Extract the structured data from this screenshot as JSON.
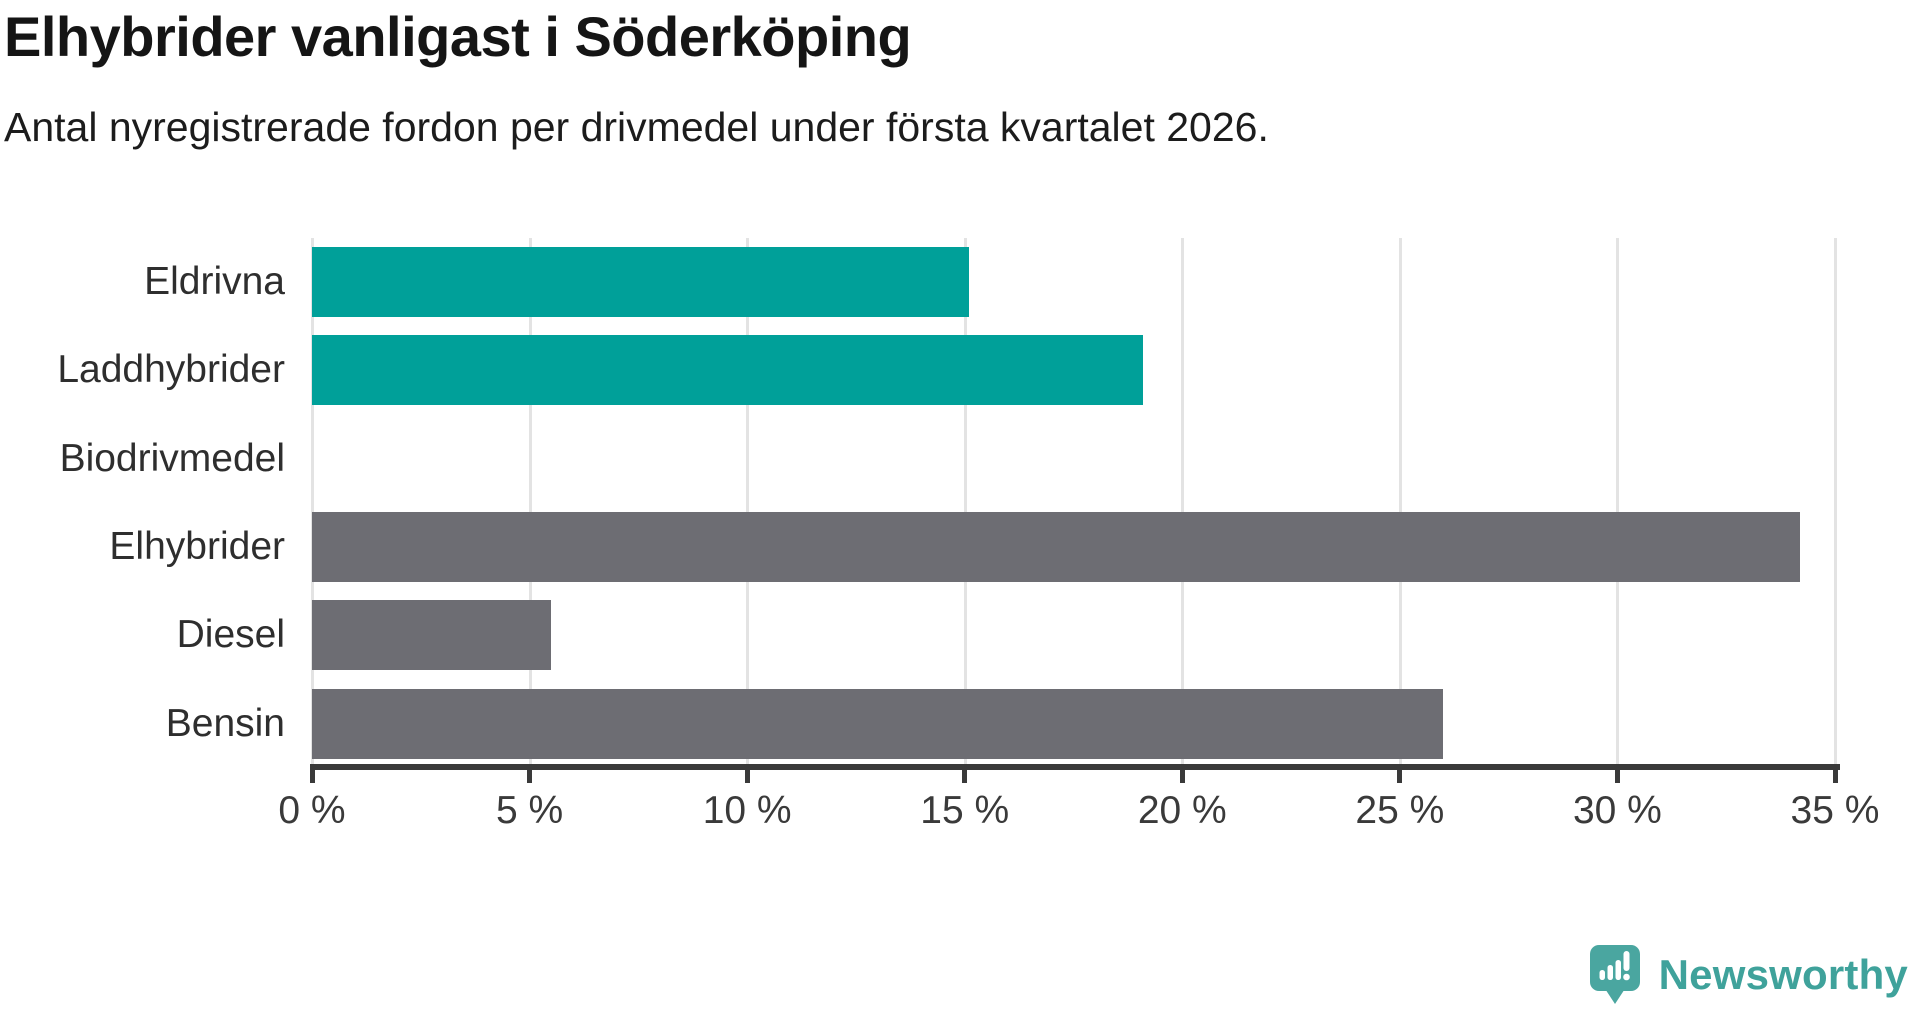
{
  "header": {
    "title": "Elhybrider vanligast i Söderköping",
    "subtitle": "Antal nyregistrerade fordon per drivmedel under första kvartalet 2026."
  },
  "chart_data": {
    "type": "bar",
    "orientation": "horizontal",
    "title": "Elhybrider vanligast i Söderköping",
    "subtitle": "Antal nyregistrerade fordon per drivmedel under första kvartalet 2026.",
    "categories": [
      "Eldrivna",
      "Laddhybrider",
      "Biodrivmedel",
      "Elhybrider",
      "Diesel",
      "Bensin"
    ],
    "values": [
      15.1,
      19.1,
      0,
      34.2,
      5.5,
      26.0
    ],
    "unit": "%",
    "bar_colors": [
      "#00a099",
      "#00a099",
      "#00a099",
      "#6d6d73",
      "#6d6d73",
      "#6d6d73"
    ],
    "xlabel": "",
    "ylabel": "",
    "xlim": [
      0,
      35
    ],
    "x_ticks": [
      0,
      5,
      10,
      15,
      20,
      25,
      30,
      35
    ],
    "x_tick_labels": [
      "0 %",
      "5 %",
      "10 %",
      "15 %",
      "20 %",
      "25 %",
      "30 %",
      "35 %"
    ],
    "grid": "vertical-only",
    "legend": false
  },
  "colors": {
    "teal": "#00a099",
    "gray": "#6d6d73",
    "gridline": "#e3e3e3",
    "axis": "#3a3a3a",
    "logo_icon": "#4aa6a0",
    "logo_text": "#3fa29b"
  },
  "footer": {
    "brand": "Newsworthy"
  }
}
